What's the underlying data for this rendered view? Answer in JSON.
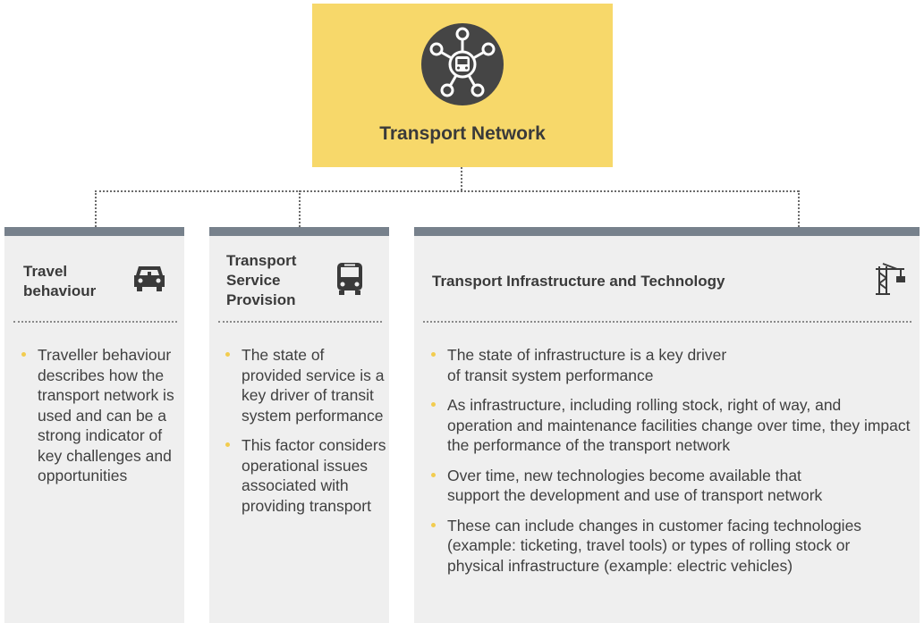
{
  "top": {
    "title": "Transport Network",
    "icon": "network-bus-icon",
    "color": "#f7d86a"
  },
  "colors": {
    "card_bg": "#efefef",
    "card_bar": "#77818c",
    "bullet": "#f2cc4f"
  },
  "cards": [
    {
      "title": "Travel behaviour",
      "icon": "car-icon",
      "bullets": [
        "Traveller behaviour describes how the transport network is used and can be a strong indicator of key challenges and opportunities"
      ]
    },
    {
      "title": "Transport Service Provision",
      "icon": "bus-icon",
      "bullets": [
        "The state of provided service is a key driver of transit system performance",
        "This factor considers operational issues associated with providing transport"
      ]
    },
    {
      "title": "Transport Infrastructure and Technology",
      "icon": "crane-icon",
      "bullets": [
        "The state of infrastructure is a key driver of transit system performance",
        "As infrastructure, including rolling stock, right of way, and operation and maintenance facilities change over time, they impact the performance of the transport network",
        "Over time, new technologies become available that support the development and use of transport network",
        "These can include changes in customer facing technologies (example: ticketing, travel tools) or types of rolling stock or physical infrastructure (example: electric vehicles)"
      ]
    }
  ]
}
